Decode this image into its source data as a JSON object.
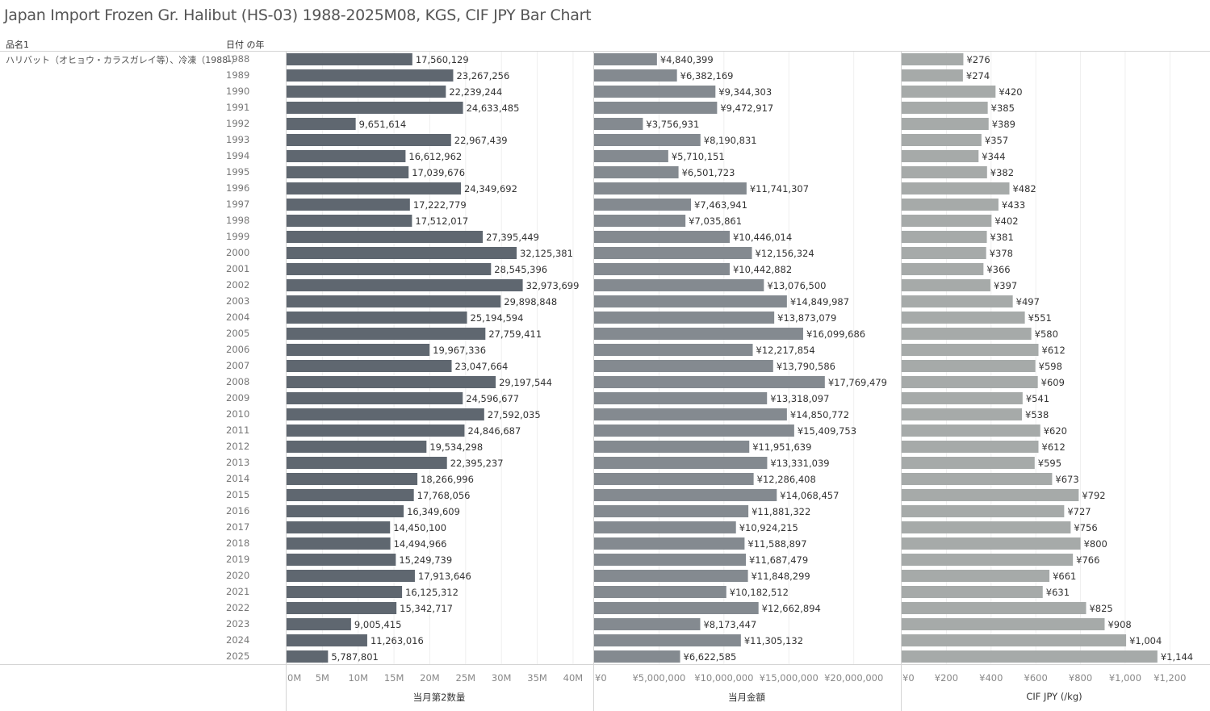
{
  "title": "Japan Import Frozen Gr. Halibut (HS-03) 1988-2025M08, KGS, CIF JPY Bar Chart",
  "headers": {
    "product": "品名1",
    "year": "日付 の年"
  },
  "product_label": "ハリバット（オヒョウ・カラスガレイ等）、冷凍（1988-）",
  "colors": {
    "quantity": "#5f6770",
    "value": "#848a90",
    "price": "#a6aaa9",
    "grid": "#efefef",
    "border": "#d4d4d4"
  },
  "chart_data": {
    "type": "bar",
    "orientation": "horizontal",
    "title": "Japan Import Frozen Gr. Halibut (HS-03) 1988-2025M08, KGS, CIF JPY Bar Chart",
    "categories": [
      "1988",
      "1989",
      "1990",
      "1991",
      "1992",
      "1993",
      "1994",
      "1995",
      "1996",
      "1997",
      "1998",
      "1999",
      "2000",
      "2001",
      "2002",
      "2003",
      "2004",
      "2005",
      "2006",
      "2007",
      "2008",
      "2009",
      "2010",
      "2011",
      "2012",
      "2013",
      "2014",
      "2015",
      "2016",
      "2017",
      "2018",
      "2019",
      "2020",
      "2021",
      "2022",
      "2023",
      "2024",
      "2025"
    ],
    "grid": true,
    "series": [
      {
        "name": "当月第2数量",
        "xlabel": "当月第2数量",
        "prefix": "",
        "xlim": [
          0,
          42600000
        ],
        "ticks": [
          0,
          5000000,
          10000000,
          15000000,
          20000000,
          25000000,
          30000000,
          35000000,
          40000000
        ],
        "tick_labels": [
          "0M",
          "5M",
          "10M",
          "15M",
          "20M",
          "25M",
          "30M",
          "35M",
          "40M"
        ],
        "values": [
          17560129,
          23267256,
          22239244,
          24633485,
          9651614,
          22967439,
          16612962,
          17039676,
          24349692,
          17222779,
          17512017,
          27395449,
          32125381,
          28545396,
          32973699,
          29898848,
          25194594,
          27759411,
          19967336,
          23047664,
          29197544,
          24596677,
          27592035,
          24846687,
          19534298,
          22395237,
          18266996,
          17768056,
          16349609,
          14450100,
          14494966,
          15249739,
          17913646,
          16125312,
          15342717,
          9005415,
          11263016,
          5787801
        ]
      },
      {
        "name": "当月金額",
        "xlabel": "当月金額",
        "prefix": "¥",
        "xlim": [
          0,
          23500000
        ],
        "ticks": [
          0,
          5000000,
          10000000,
          15000000,
          20000000
        ],
        "tick_labels": [
          "¥0",
          "¥5,000,000",
          "¥10,000,000",
          "¥15,000,000",
          "¥20,000,000"
        ],
        "values": [
          4840399,
          6382169,
          9344303,
          9472917,
          3756931,
          8190831,
          5710151,
          6501723,
          11741307,
          7463941,
          7035861,
          10446014,
          12156324,
          10442882,
          13076500,
          14849987,
          13873079,
          16099686,
          12217854,
          13790586,
          17769479,
          13318097,
          14850772,
          15409753,
          11951639,
          13331039,
          12286408,
          14068457,
          11881322,
          10924215,
          11588897,
          11687479,
          11848299,
          10182512,
          12662894,
          8173447,
          11305132,
          6622585
        ]
      },
      {
        "name": "CIF JPY (/kg)",
        "xlabel": "CIF JPY (/kg)",
        "prefix": "¥",
        "xlim": [
          0,
          1372
        ],
        "ticks": [
          0,
          200,
          400,
          600,
          800,
          1000,
          1200
        ],
        "tick_labels": [
          "¥0",
          "¥200",
          "¥400",
          "¥600",
          "¥800",
          "¥1,000",
          "¥1,200"
        ],
        "values": [
          276,
          274,
          420,
          385,
          389,
          357,
          344,
          382,
          482,
          433,
          402,
          381,
          378,
          366,
          397,
          497,
          551,
          580,
          612,
          598,
          609,
          541,
          538,
          620,
          612,
          595,
          673,
          792,
          727,
          756,
          800,
          766,
          661,
          631,
          825,
          908,
          1004,
          1144
        ]
      }
    ]
  }
}
